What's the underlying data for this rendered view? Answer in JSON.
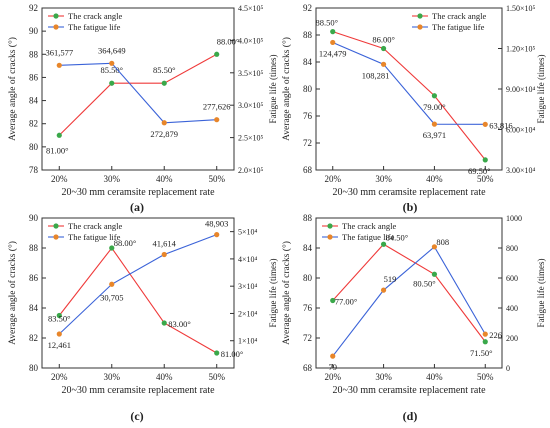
{
  "chart_data": [
    {
      "type": "line",
      "panel_label": "(a)",
      "categories": [
        "20%",
        "30%",
        "40%",
        "50%"
      ],
      "xlabel": "20~30 mm ceramsite replacement rate",
      "ylabel_left": "Average angle of cracks (°)",
      "ylabel_right": "Fatigue life (times)",
      "ylim_left": [
        78,
        92
      ],
      "yticks_left": [
        "78",
        "80",
        "82",
        "84",
        "86",
        "88",
        "90",
        "92"
      ],
      "ylim_right": [
        200000,
        450000
      ],
      "yticks_right": [
        "2.0×10⁵",
        "2.5×10⁵",
        "3.0×10⁵",
        "3.5×10⁵",
        "4.0×10⁵",
        "4.5×10⁵"
      ],
      "legend_position": "top-left",
      "series": [
        {
          "name": "The crack angle",
          "axis": "left",
          "color": "#3aa84a",
          "values": [
            81.0,
            85.5,
            85.5,
            88.0
          ],
          "labels": [
            "81.00°",
            "85.50°",
            "85.50°",
            "88.00°"
          ]
        },
        {
          "name": "The fatigue life",
          "axis": "right",
          "color": "#e8862a",
          "values": [
            361577,
            364649,
            272879,
            277626
          ],
          "labels": [
            "361,577",
            "364,649",
            "272,879",
            "277,626"
          ]
        }
      ]
    },
    {
      "type": "line",
      "panel_label": "(b)",
      "categories": [
        "20%",
        "30%",
        "40%",
        "50%"
      ],
      "xlabel": "20~30 mm ceramsite replacement rate",
      "ylabel_left": "Average angle of cracks (°)",
      "ylabel_right": "Fatigue life (times)",
      "ylim_left": [
        68,
        92
      ],
      "yticks_left": [
        "68",
        "72",
        "76",
        "80",
        "84",
        "88",
        "92"
      ],
      "ylim_right": [
        30000,
        150000
      ],
      "yticks_right": [
        "3.00×10⁴",
        "6.00×10⁴",
        "9.00×10⁴",
        "1.20×10⁵",
        "1.50×10⁵"
      ],
      "legend_position": "top-right",
      "series": [
        {
          "name": "The crack angle",
          "axis": "left",
          "color": "#3aa84a",
          "values": [
            88.5,
            86.0,
            79.0,
            69.5
          ],
          "labels": [
            "88.50°",
            "86.00°",
            "79.00°",
            "69.50°"
          ]
        },
        {
          "name": "The fatigue life",
          "axis": "right",
          "color": "#e8862a",
          "values": [
            124479,
            108281,
            63971,
            63816
          ],
          "labels": [
            "124,479",
            "108,281",
            "63,971",
            "63,816"
          ]
        }
      ]
    },
    {
      "type": "line",
      "panel_label": "(c)",
      "categories": [
        "20%",
        "30%",
        "40%",
        "50%"
      ],
      "xlabel": "20~30 mm ceramsite replacement rate",
      "ylabel_left": "Average angle of cracks (°)",
      "ylabel_right": "Fatigue life (times)",
      "ylim_left": [
        80,
        90
      ],
      "yticks_left": [
        "80",
        "82",
        "84",
        "86",
        "88",
        "90"
      ],
      "ylim_right": [
        0,
        55000
      ],
      "yticks_right": [
        "1×10⁴",
        "2×10⁴",
        "3×10⁴",
        "4×10⁴",
        "5×10⁴"
      ],
      "yticks_right_values": [
        10000,
        20000,
        30000,
        40000,
        50000
      ],
      "legend_position": "top-left",
      "series": [
        {
          "name": "The crack angle",
          "axis": "left",
          "color": "#3aa84a",
          "values": [
            83.5,
            88.0,
            83.0,
            81.0
          ],
          "labels": [
            "83.50°",
            "88.00°",
            "83.00°",
            "81.00°"
          ]
        },
        {
          "name": "The fatigue life",
          "axis": "right",
          "color": "#e8862a",
          "values": [
            12461,
            30705,
            41614,
            48903
          ],
          "labels": [
            "12,461",
            "30,705",
            "41,614",
            "48,903"
          ]
        }
      ]
    },
    {
      "type": "line",
      "panel_label": "(d)",
      "categories": [
        "20%",
        "30%",
        "40%",
        "50%"
      ],
      "xlabel": "20~30 mm ceramsite replacement rate",
      "ylabel_left": "Average angle of cracks (°)",
      "ylabel_right": "Fatigue life (times)",
      "ylim_left": [
        68,
        88
      ],
      "yticks_left": [
        "68",
        "72",
        "76",
        "80",
        "84",
        "88"
      ],
      "ylim_right": [
        0,
        1000
      ],
      "yticks_right": [
        "0",
        "200",
        "400",
        "600",
        "800",
        "1000"
      ],
      "legend_position": "top-left",
      "series": [
        {
          "name": "The crack angle",
          "axis": "left",
          "color": "#3aa84a",
          "values": [
            77.0,
            84.5,
            80.5,
            71.5
          ],
          "labels": [
            "77.00°",
            "84.50°",
            "80.50°",
            "71.50°"
          ]
        },
        {
          "name": "The fatigue life",
          "axis": "right",
          "color": "#e8862a",
          "values": [
            79,
            519,
            808,
            226
          ],
          "labels": [
            "79",
            "519",
            "808",
            "226"
          ]
        }
      ]
    }
  ]
}
